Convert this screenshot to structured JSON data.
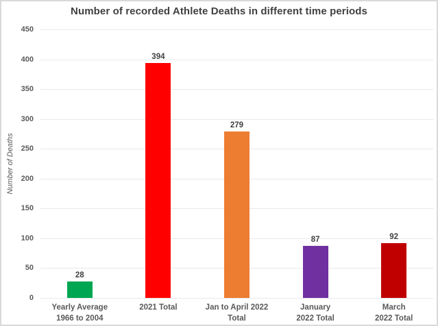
{
  "chart_data": {
    "type": "bar",
    "title": "Number of recorded Athlete Deaths in different time periods",
    "ylabel": "Number of Deaths",
    "xlabel": "",
    "categories": [
      "Yearly Average\n1966 to 2004",
      "2021 Total",
      "Jan to April 2022\nTotal",
      "January\n2022 Total",
      "March\n2022 Total"
    ],
    "values": [
      28,
      394,
      279,
      87,
      92
    ],
    "bar_colors": [
      "#00A651",
      "#FF0000",
      "#ED7D31",
      "#7030A0",
      "#C00000"
    ],
    "ylim": [
      0,
      450
    ],
    "ytick_interval": 50,
    "grid": true,
    "legend": false
  },
  "colors": {
    "title_text": "#404040",
    "axis_text": "#595959",
    "value_label_text": "#404040",
    "gridline": "#e8e8e8",
    "background": "#ffffff",
    "border": "#d9d9d9"
  }
}
